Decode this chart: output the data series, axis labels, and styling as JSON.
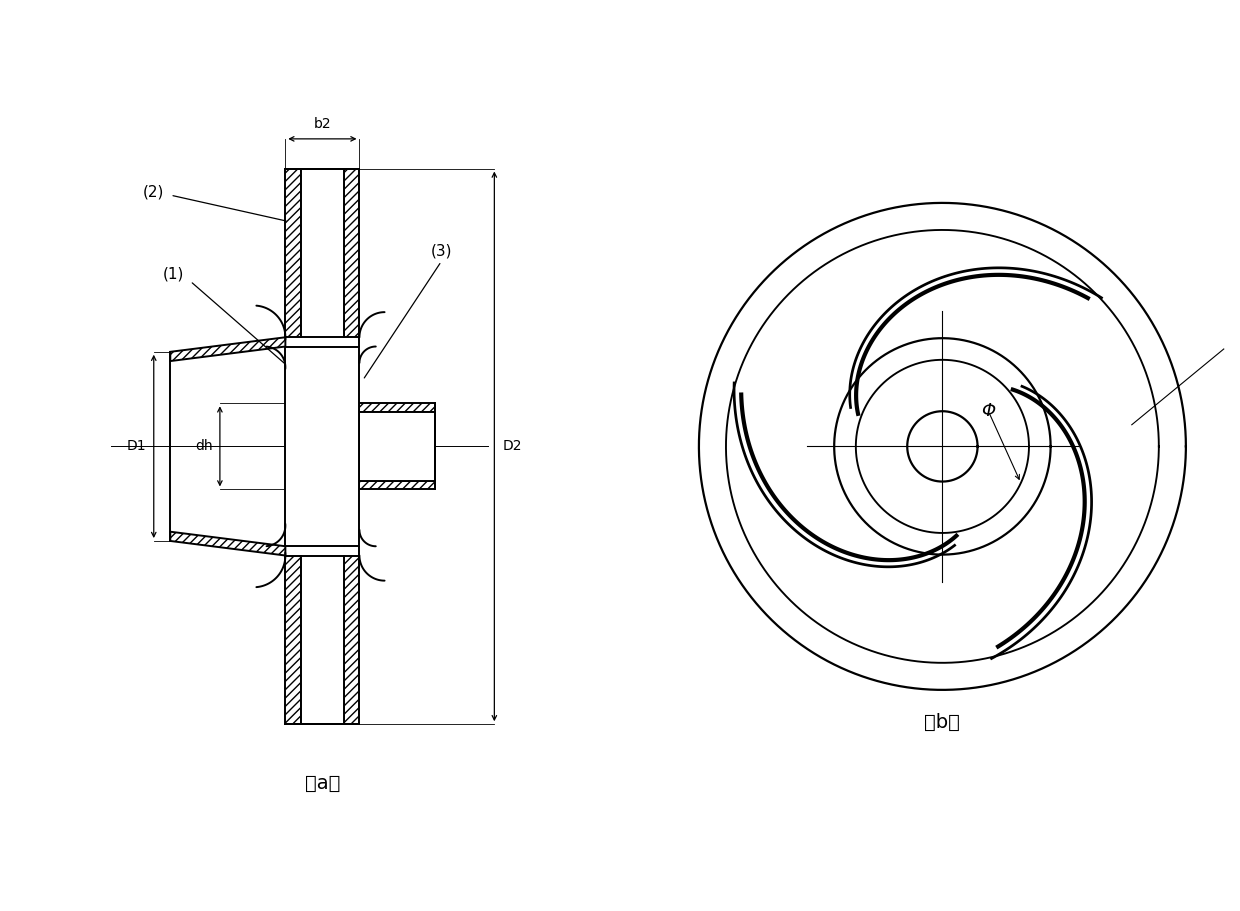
{
  "bg_color": "#ffffff",
  "line_color": "#000000",
  "hatch_color": "#444444",
  "label_a": "（a）",
  "label_b": "（b）",
  "label_phi": "Φ",
  "fig_width": 12.4,
  "fig_height": 9.11,
  "dpi": 100,
  "lw_main": 1.4,
  "lw_dim": 0.9,
  "lw_thin": 0.7
}
